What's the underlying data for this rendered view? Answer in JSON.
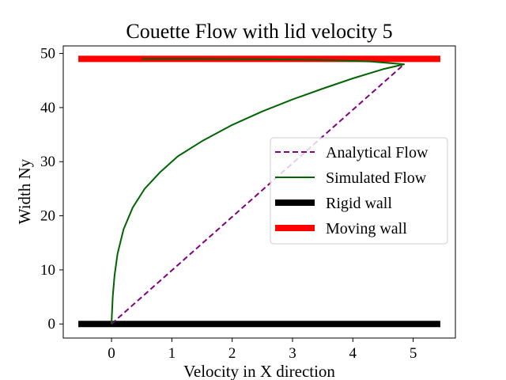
{
  "chart_data": {
    "type": "line",
    "title": "Couette Flow with lid velocity 5",
    "xlabel": "Velocity in X direction",
    "ylabel": "Width Ny",
    "xlim": [
      -0.8,
      5.7
    ],
    "ylim": [
      -2.6,
      51.4
    ],
    "xticks": [
      0,
      1,
      2,
      3,
      4,
      5
    ],
    "yticks": [
      0,
      10,
      20,
      30,
      40,
      50
    ],
    "grid": false,
    "legend_position": "center-right",
    "series": [
      {
        "name": "Analytical Flow",
        "color": "#800080",
        "style": "dashed",
        "x": [
          0.0,
          4.85
        ],
        "y": [
          0.0,
          48.0
        ]
      },
      {
        "name": "Simulated Flow",
        "color": "#006400",
        "style": "solid",
        "x": [
          0.0,
          0.02,
          0.05,
          0.1,
          0.2,
          0.35,
          0.55,
          0.8,
          1.1,
          1.5,
          2.0,
          2.5,
          3.0,
          3.5,
          4.0,
          4.5,
          4.85,
          4.3,
          3.5,
          2.5,
          1.5,
          0.5
        ],
        "y": [
          0.0,
          5.0,
          9.0,
          13.0,
          17.5,
          21.5,
          25.0,
          28.0,
          31.0,
          33.8,
          36.8,
          39.3,
          41.5,
          43.5,
          45.4,
          47.1,
          48.0,
          48.5,
          48.8,
          48.95,
          49.0,
          49.0
        ]
      },
      {
        "name": "Rigid wall",
        "color": "#000000",
        "style": "solid-thick",
        "x": [
          -0.55,
          5.45
        ],
        "y": [
          0.0,
          0.0
        ]
      },
      {
        "name": "Moving wall",
        "color": "#ff0000",
        "style": "solid-thick",
        "x": [
          -0.55,
          5.45
        ],
        "y": [
          49.0,
          49.0
        ]
      }
    ]
  }
}
